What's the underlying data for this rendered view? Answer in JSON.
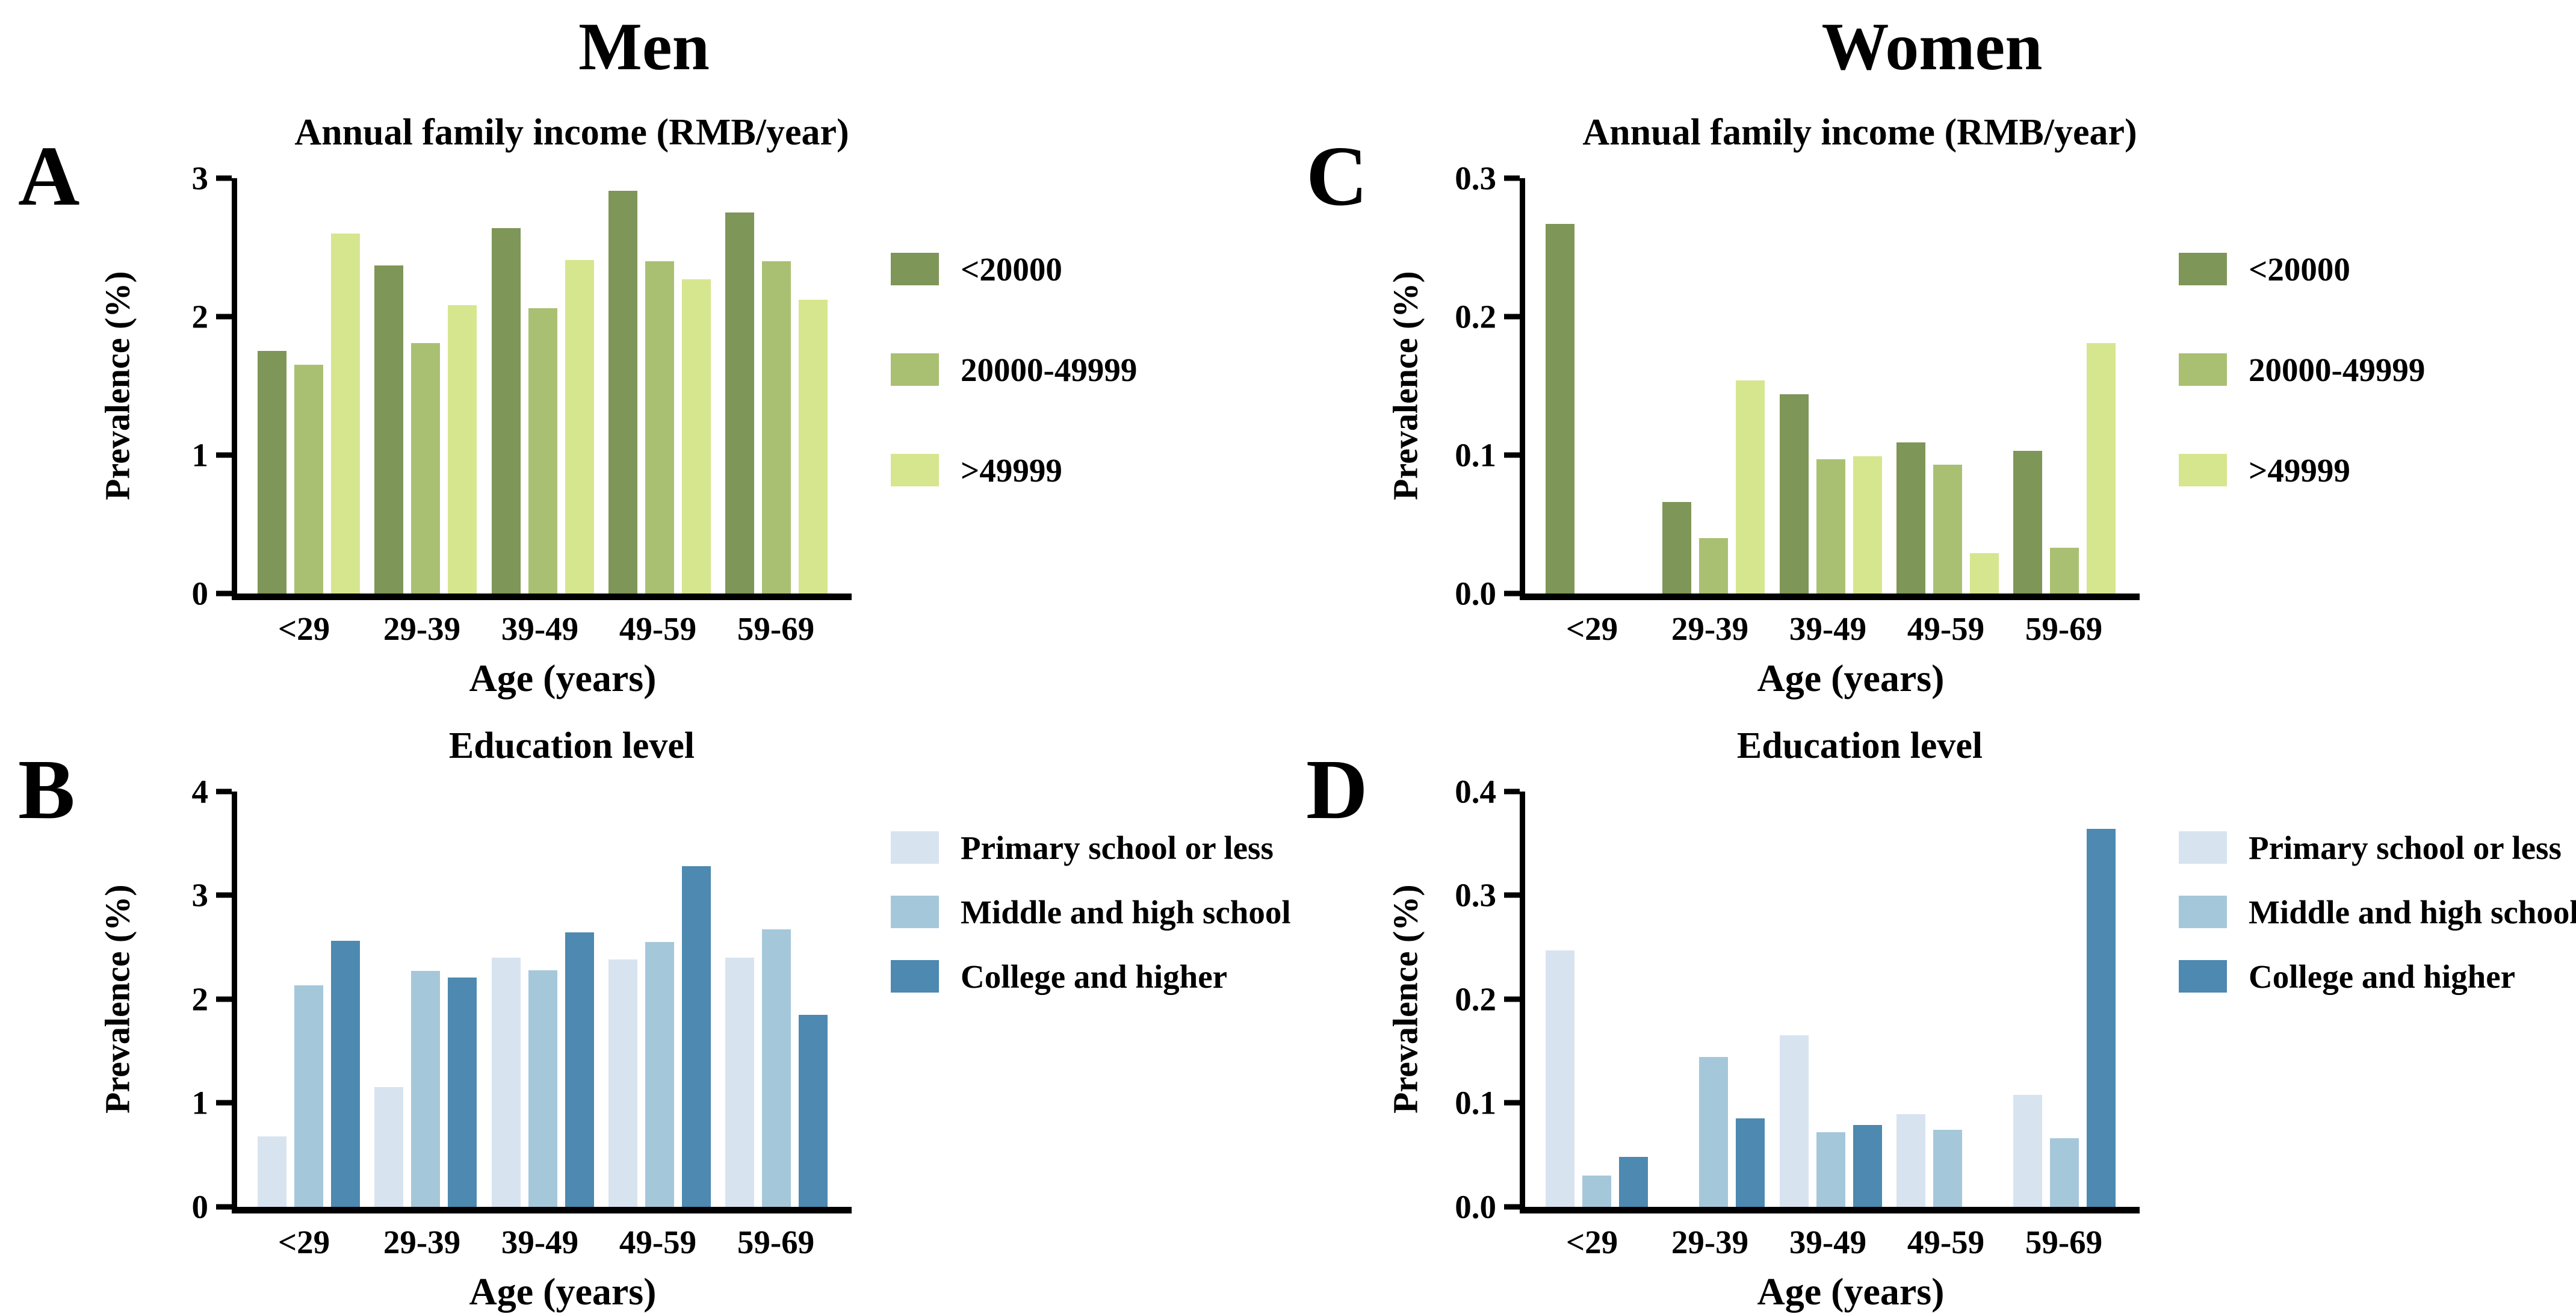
{
  "figure": {
    "column_headers": [
      "Men",
      "Women"
    ]
  },
  "chart_data": [
    {
      "panel": "A",
      "column": "Men",
      "type": "bar",
      "title": "Annual family income (RMB/year)",
      "xlabel": "Age (years)",
      "ylabel": "Prevalence (%)",
      "ylim": [
        0,
        3
      ],
      "yticks": [
        "3",
        "2",
        "1",
        "0"
      ],
      "grid": false,
      "legend_position": "right",
      "categories": [
        "<29",
        "29-39",
        "39-49",
        "49-59",
        "59-69"
      ],
      "series": [
        {
          "name": "<20000",
          "color": "#7e9657",
          "values": [
            1.75,
            2.37,
            2.64,
            2.91,
            2.75
          ]
        },
        {
          "name": "20000-49999",
          "color": "#a9c072",
          "values": [
            1.65,
            1.81,
            2.06,
            2.4,
            2.4
          ]
        },
        {
          "name": ">49999",
          "color": "#d6e68e",
          "values": [
            2.6,
            2.08,
            2.41,
            2.27,
            2.12
          ]
        }
      ]
    },
    {
      "panel": "B",
      "column": "Men",
      "type": "bar",
      "title": "Education level",
      "xlabel": "Age (years)",
      "ylabel": "Prevalence (%)",
      "ylim": [
        0,
        4
      ],
      "yticks": [
        "4",
        "3",
        "2",
        "1",
        "0"
      ],
      "grid": false,
      "legend_position": "right",
      "categories": [
        "<29",
        "29-39",
        "39-49",
        "49-59",
        "59-69"
      ],
      "series": [
        {
          "name": "Primary school or less",
          "color": "#d8e3f0",
          "values": [
            0.68,
            1.15,
            2.4,
            2.38,
            2.4
          ]
        },
        {
          "name": "Middle and high school",
          "color": "#a5c7da",
          "values": [
            2.13,
            2.27,
            2.28,
            2.55,
            2.67
          ]
        },
        {
          "name": "College and higher",
          "color": "#4d89b0",
          "values": [
            2.56,
            2.21,
            2.64,
            3.28,
            1.85
          ]
        }
      ]
    },
    {
      "panel": "C",
      "column": "Women",
      "type": "bar",
      "title": "Annual family income (RMB/year)",
      "xlabel": "Age (years)",
      "ylabel": "Prevalence (%)",
      "ylim": [
        0,
        0.3
      ],
      "yticks": [
        "0.3",
        "0.2",
        "0.1",
        "0.0"
      ],
      "grid": false,
      "legend_position": "right",
      "categories": [
        "<29",
        "29-39",
        "39-49",
        "49-59",
        "59-69"
      ],
      "series": [
        {
          "name": "<20000",
          "color": "#7e9657",
          "values": [
            0.267,
            0.066,
            0.144,
            0.109,
            0.103
          ]
        },
        {
          "name": "20000-49999",
          "color": "#a9c072",
          "values": [
            0,
            0.04,
            0.097,
            0.093,
            0.033
          ]
        },
        {
          "name": ">49999",
          "color": "#d6e68e",
          "values": [
            0,
            0.154,
            0.099,
            0.029,
            0.181
          ]
        }
      ]
    },
    {
      "panel": "D",
      "column": "Women",
      "type": "bar",
      "title": "Education level",
      "xlabel": "Age (years)",
      "ylabel": "Prevalence (%)",
      "ylim": [
        0,
        0.4
      ],
      "yticks": [
        "0.4",
        "0.3",
        "0.2",
        "0.1",
        "0.0"
      ],
      "grid": false,
      "legend_position": "right",
      "categories": [
        "<29",
        "29-39",
        "39-49",
        "49-59",
        "59-69"
      ],
      "series": [
        {
          "name": "Primary school or less",
          "color": "#d8e3f0",
          "values": [
            0.247,
            0,
            0.165,
            0.089,
            0.108
          ]
        },
        {
          "name": "Middle and high school",
          "color": "#a5c7da",
          "values": [
            0.03,
            0.144,
            0.072,
            0.074,
            0.066
          ]
        },
        {
          "name": "College and higher",
          "color": "#4d89b0",
          "values": [
            0.048,
            0.085,
            0.079,
            0,
            0.364
          ]
        }
      ]
    }
  ]
}
